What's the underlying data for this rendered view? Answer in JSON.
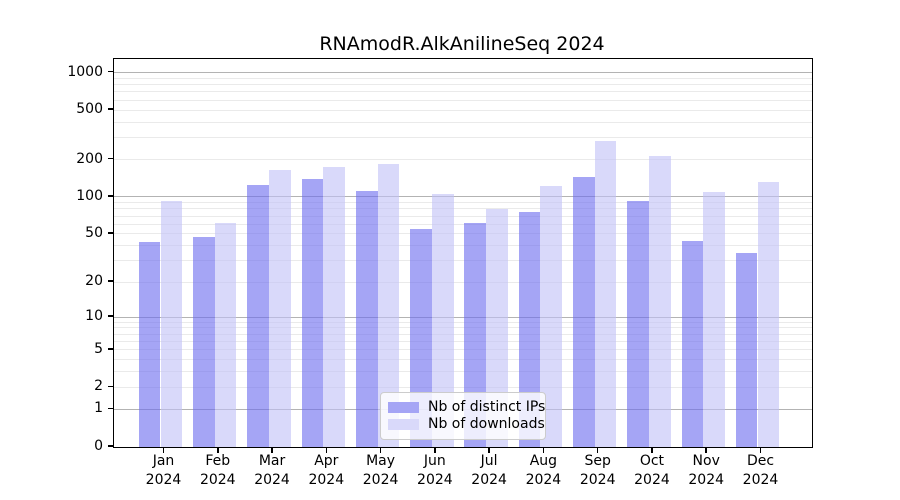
{
  "chart_data": {
    "type": "bar",
    "title": "RNAmodR.AlkAnilineSeq 2024",
    "categories": [
      "Jan",
      "Feb",
      "Mar",
      "Apr",
      "May",
      "Jun",
      "Jul",
      "Aug",
      "Sep",
      "Oct",
      "Nov",
      "Dec"
    ],
    "category_year": "2024",
    "series": [
      {
        "name": "Nb of distinct IPs",
        "swatch_color": "#a5a5f5",
        "fill_color": "rgba(105,105,238,0.6)",
        "values": [
          43,
          47,
          125,
          139,
          111,
          55,
          62,
          76,
          145,
          93,
          44,
          35
        ]
      },
      {
        "name": "Nb of downloads",
        "swatch_color": "#d9d9fa",
        "fill_color": "rgba(192,192,247,0.6)",
        "values": [
          93,
          61,
          165,
          174,
          184,
          106,
          80,
          123,
          280,
          215,
          110,
          133
        ]
      }
    ],
    "y_axis": {
      "scale": "log1p",
      "tick_labels": [
        0,
        1,
        2,
        5,
        10,
        20,
        50,
        100,
        200,
        500,
        1000
      ],
      "max_value": 1286
    },
    "x_axis": {
      "tick_labels_line1": [
        "Jan",
        "Feb",
        "Mar",
        "Apr",
        "May",
        "Jun",
        "Jul",
        "Aug",
        "Sep",
        "Oct",
        "Nov",
        "Dec"
      ],
      "tick_labels_line2": "2024"
    },
    "grid": {
      "enabled": true,
      "major_lines": [
        1,
        10,
        100,
        1000
      ],
      "minor_lines": [
        2,
        3,
        4,
        5,
        6,
        7,
        8,
        9,
        20,
        30,
        40,
        50,
        60,
        70,
        80,
        90,
        200,
        300,
        400,
        500,
        600,
        700,
        800,
        900
      ],
      "major_color": "#b3b3b3",
      "minor_color": "#eaeaea"
    },
    "legend": {
      "position": "bottom-center",
      "entries": [
        "Nb of distinct IPs",
        "Nb of downloads"
      ]
    }
  }
}
